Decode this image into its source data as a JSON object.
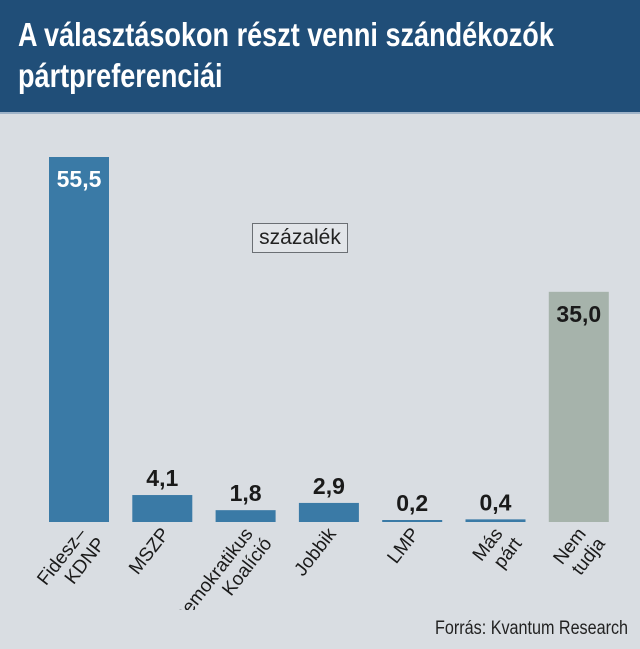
{
  "header": {
    "title_line1": "A választásokon részt venni szándékozók",
    "title_line2": "pártpreferenciái"
  },
  "unit_label": "százalék",
  "source": "Forrás: Kvantum Research",
  "colors": {
    "header_bg": "#204e78",
    "bar_party": "#3a7aa6",
    "bar_undecided": "#a6b3ab",
    "background": "#d9dde2"
  },
  "chart_data": {
    "type": "bar",
    "categories": [
      [
        "Fidesz–",
        "KDNP"
      ],
      [
        "MSZP"
      ],
      [
        "Demokratikus",
        "Koalíció"
      ],
      [
        "Jobbik"
      ],
      [
        "LMP"
      ],
      [
        "Más",
        "párt"
      ],
      [
        "Nem",
        "tudja"
      ]
    ],
    "values": [
      55.5,
      4.1,
      1.8,
      2.9,
      0.2,
      0.4,
      35.0
    ],
    "value_labels": [
      "55,5",
      "4,1",
      "1,8",
      "2,9",
      "0,2",
      "0,4",
      "35,0"
    ],
    "bar_kinds": [
      "party",
      "party",
      "party",
      "party",
      "party",
      "party",
      "undecided"
    ],
    "ylim": [
      0,
      55.5
    ],
    "ylabel": "százalék",
    "grid": false,
    "legend": "none"
  }
}
